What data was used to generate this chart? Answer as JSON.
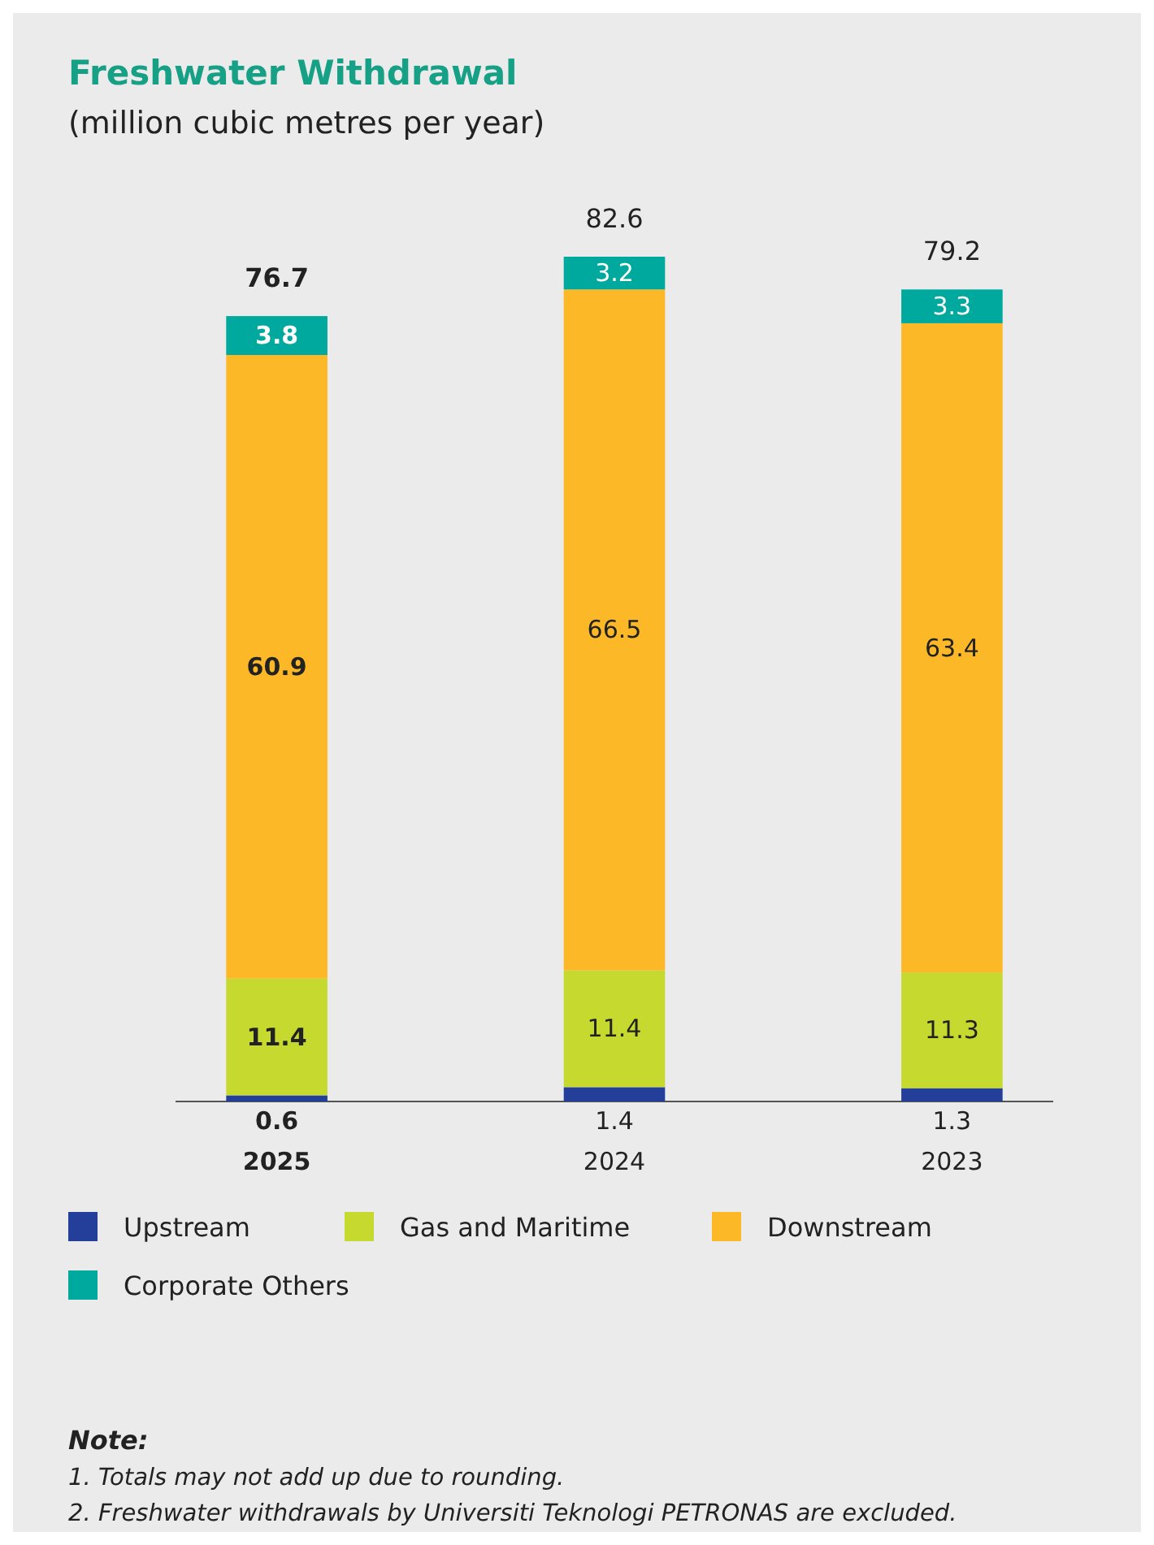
{
  "chart_data": {
    "type": "bar",
    "title": "Freshwater Withdrawal",
    "subtitle": "(million cubic metres per year)",
    "categories": [
      "2025",
      "2024",
      "2023"
    ],
    "stacked": true,
    "data_labels": true,
    "legend": "bottom",
    "totals": [
      "76.7",
      "82.6",
      "79.2"
    ],
    "series": [
      {
        "name": "Upstream",
        "color": "#233f99",
        "values": [
          0.6,
          1.4,
          1.3
        ]
      },
      {
        "name": "Gas and Maritime",
        "color": "#c6d92e",
        "values": [
          11.4,
          11.4,
          11.3
        ]
      },
      {
        "name": "Downstream",
        "color": "#fdb827",
        "values": [
          60.9,
          66.5,
          63.4
        ]
      },
      {
        "name": "Corporate Others",
        "color": "#00a99d",
        "values": [
          3.8,
          3.2,
          3.3
        ]
      }
    ],
    "annotations": [
      "Note:",
      "1. Totals may not add up due to rounding.",
      "2. Freshwater withdrawals by Universiti Teknologi PETRONAS are excluded."
    ]
  }
}
